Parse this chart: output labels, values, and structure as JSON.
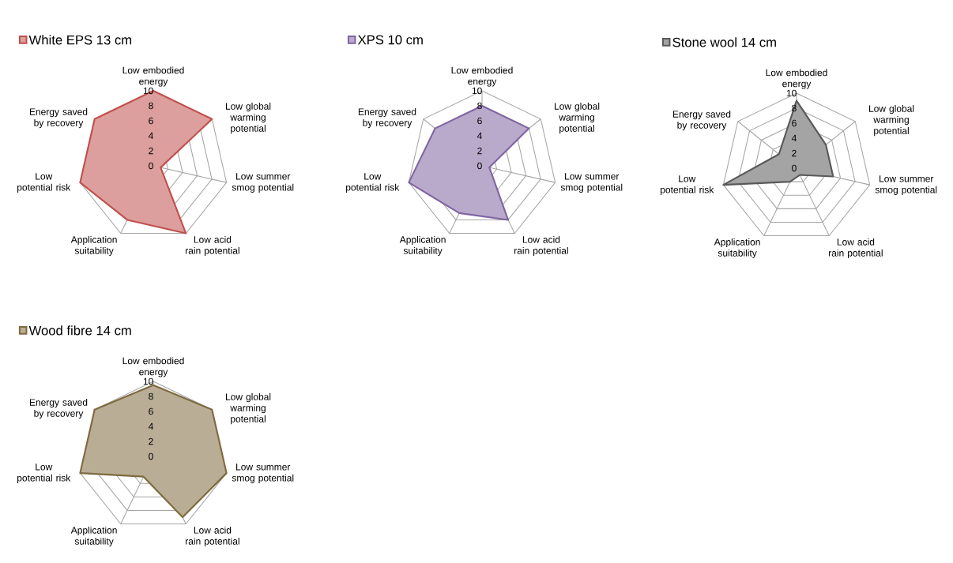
{
  "chart_data": [
    {
      "type": "radar",
      "categories": [
        "Low embodied energy",
        "Low global warming potential",
        "Low summer smog potential",
        "Low acid rain potential",
        "Application suitability",
        "Low potential risk",
        "Energy saved by recovery"
      ],
      "ylim": [
        0,
        10
      ],
      "yticks": [
        0,
        2,
        4,
        6,
        8,
        10
      ],
      "grid": true,
      "legend": "top left",
      "marker": "none",
      "series": [
        {
          "name": "White EPS 13 cm",
          "color": "#c0504d",
          "values": [
            10,
            10,
            1,
            10,
            8,
            10,
            10
          ]
        }
      ]
    },
    {
      "type": "radar",
      "categories": [
        "Low embodied energy",
        "Low global warming potential",
        "Low summer smog potential",
        "Low acid rain potential",
        "Application suitability",
        "Low potential risk",
        "Energy saved by recovery"
      ],
      "ylim": [
        0,
        10
      ],
      "yticks": [
        0,
        2,
        4,
        6,
        8,
        10
      ],
      "grid": true,
      "legend": "top left",
      "marker": "none",
      "series": [
        {
          "name": "XPS 10 cm",
          "color": "#8064a2",
          "values": [
            8,
            8,
            1,
            8,
            7,
            10,
            8
          ]
        }
      ]
    },
    {
      "type": "radar",
      "categories": [
        "Low embodied energy",
        "Low global warming potential",
        "Low summer smog potential",
        "Low acid rain potential",
        "Application suitability",
        "Low potential risk",
        "Energy saved by recovery"
      ],
      "ylim": [
        0,
        10
      ],
      "yticks": [
        0,
        2,
        4,
        6,
        8,
        10
      ],
      "grid": true,
      "legend": "top left",
      "marker": "none",
      "series": [
        {
          "name": "Stone wool 14 cm",
          "color": "#595959",
          "values": [
            9,
            5,
            5,
            1,
            2,
            10,
            3
          ]
        }
      ]
    },
    {
      "type": "radar",
      "categories": [
        "Low embodied energy",
        "Low global warming potential",
        "Low summer smog potential",
        "Low acid rain potential",
        "Application suitability",
        "Low potential risk",
        "Energy saved by recovery"
      ],
      "ylim": [
        0,
        10
      ],
      "yticks": [
        0,
        2,
        4,
        6,
        8,
        10
      ],
      "grid": true,
      "legend": "top left",
      "marker": "none",
      "series": [
        {
          "name": "Wood fibre 14 cm",
          "color": "#7f6a3f",
          "values": [
            9.5,
            10,
            10,
            9,
            3,
            10,
            10
          ]
        }
      ]
    }
  ]
}
